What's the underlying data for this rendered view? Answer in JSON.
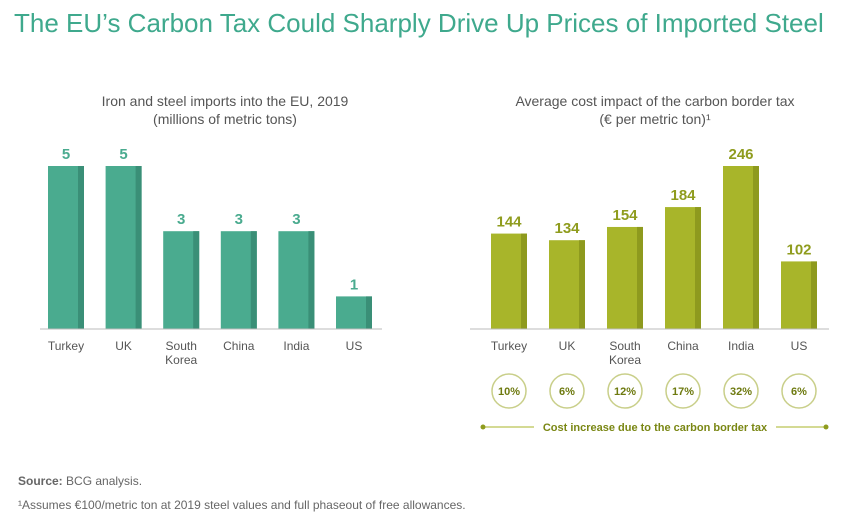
{
  "title": "The EU’s Carbon Tax Could Sharply Drive Up Prices of Imported Steel",
  "chart_data": [
    {
      "type": "bar",
      "title": "Iron and steel imports into the EU, 2019",
      "subtitle": "(millions of metric tons)",
      "categories": [
        [
          "Turkey"
        ],
        [
          "UK"
        ],
        [
          "South",
          "Korea"
        ],
        [
          "China"
        ],
        [
          "India"
        ],
        [
          "US"
        ]
      ],
      "values": [
        5,
        5,
        3,
        3,
        3,
        1
      ],
      "ylim": [
        0,
        5
      ],
      "color": "#4aab8f",
      "shade": "#3a8f77",
      "label_color": "#4aab8f"
    },
    {
      "type": "bar",
      "title": "Average cost impact of the carbon border tax",
      "subtitle": "(€ per metric ton)¹",
      "categories": [
        [
          "Turkey"
        ],
        [
          "UK"
        ],
        [
          "South",
          "Korea"
        ],
        [
          "China"
        ],
        [
          "India"
        ],
        [
          "US"
        ]
      ],
      "values": [
        144,
        134,
        154,
        184,
        246,
        102
      ],
      "ylim": [
        0,
        246
      ],
      "color": "#a8b52a",
      "shade": "#8e9a1e",
      "label_color": "#8f9c1e",
      "percent_increase": [
        "10%",
        "6%",
        "12%",
        "17%",
        "32%",
        "6%"
      ],
      "percent_caption": "Cost increase due to the carbon border tax"
    }
  ],
  "source_label": "Source:",
  "source_text": " BCG analysis.",
  "footnote": "¹Assumes €100/metric ton at 2019 steel values and full phaseout of free allowances."
}
